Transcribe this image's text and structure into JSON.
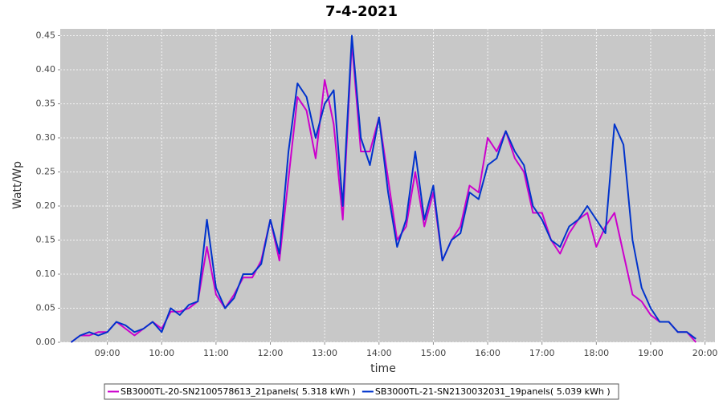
{
  "chart_data": {
    "type": "line",
    "title": "7-4-2021",
    "x_label": "time",
    "y_label": "Watt/Wp",
    "x": [
      "08:20",
      "08:30",
      "08:40",
      "08:50",
      "09:00",
      "09:10",
      "09:20",
      "09:30",
      "09:40",
      "09:50",
      "10:00",
      "10:10",
      "10:20",
      "10:30",
      "10:40",
      "10:50",
      "11:00",
      "11:10",
      "11:20",
      "11:30",
      "11:40",
      "11:50",
      "12:00",
      "12:10",
      "12:20",
      "12:30",
      "12:40",
      "12:50",
      "13:00",
      "13:10",
      "13:20",
      "13:30",
      "13:40",
      "13:50",
      "14:00",
      "14:10",
      "14:20",
      "14:30",
      "14:40",
      "14:50",
      "15:00",
      "15:10",
      "15:20",
      "15:30",
      "15:40",
      "15:50",
      "16:00",
      "16:10",
      "16:20",
      "16:30",
      "16:40",
      "16:50",
      "17:00",
      "17:10",
      "17:20",
      "17:30",
      "17:40",
      "17:50",
      "18:00",
      "18:10",
      "18:20",
      "18:30",
      "18:40",
      "18:50",
      "19:00",
      "19:10",
      "19:20",
      "19:30",
      "19:40",
      "19:50"
    ],
    "series": [
      {
        "name": "SB3000TL-20-SN2100578613_21panels( 5.318 kWh )",
        "color": "#cc00cc",
        "values": [
          0,
          0.01,
          0.01,
          0.015,
          0.015,
          0.03,
          0.02,
          0.01,
          0.02,
          0.03,
          0.02,
          0.045,
          0.045,
          0.05,
          0.06,
          0.14,
          0.07,
          0.05,
          0.07,
          0.095,
          0.095,
          0.12,
          0.18,
          0.12,
          0.24,
          0.36,
          0.34,
          0.27,
          0.385,
          0.32,
          0.18,
          0.44,
          0.28,
          0.28,
          0.33,
          0.24,
          0.15,
          0.17,
          0.25,
          0.17,
          0.22,
          0.12,
          0.15,
          0.17,
          0.23,
          0.22,
          0.3,
          0.28,
          0.31,
          0.27,
          0.25,
          0.19,
          0.19,
          0.15,
          0.13,
          0.16,
          0.18,
          0.19,
          0.14,
          0.17,
          0.19,
          0.13,
          0.07,
          0.06,
          0.04,
          0.03,
          0.03,
          0.015,
          0.015,
          0
        ]
      },
      {
        "name": "SB3000TL-21-SN2130032031_19panels( 5.039 kWh )",
        "color": "#0033cc",
        "values": [
          0,
          0.01,
          0.015,
          0.01,
          0.015,
          0.03,
          0.025,
          0.015,
          0.02,
          0.03,
          0.015,
          0.05,
          0.04,
          0.055,
          0.06,
          0.18,
          0.08,
          0.05,
          0.065,
          0.1,
          0.1,
          0.115,
          0.18,
          0.13,
          0.28,
          0.38,
          0.36,
          0.3,
          0.35,
          0.37,
          0.2,
          0.45,
          0.3,
          0.26,
          0.33,
          0.22,
          0.14,
          0.18,
          0.28,
          0.18,
          0.23,
          0.12,
          0.15,
          0.16,
          0.22,
          0.21,
          0.26,
          0.27,
          0.31,
          0.28,
          0.26,
          0.2,
          0.18,
          0.15,
          0.14,
          0.17,
          0.18,
          0.2,
          0.18,
          0.16,
          0.32,
          0.29,
          0.15,
          0.08,
          0.05,
          0.03,
          0.03,
          0.015,
          0.015,
          0.005
        ]
      }
    ],
    "xlim": [
      "08:08",
      "20:11"
    ],
    "xticks": [
      "09:00",
      "10:00",
      "11:00",
      "12:00",
      "13:00",
      "14:00",
      "15:00",
      "16:00",
      "17:00",
      "18:00",
      "19:00",
      "20:00"
    ],
    "ylim": [
      0,
      0.46
    ],
    "yticks": [
      {
        "value": 0,
        "label": "0.00"
      },
      {
        "value": 0.05,
        "label": "0.05"
      },
      {
        "value": 0.1,
        "label": "0.10"
      },
      {
        "value": 0.15,
        "label": "0.15"
      },
      {
        "value": 0.2,
        "label": "0.20"
      },
      {
        "value": 0.25,
        "label": "0.25"
      },
      {
        "value": 0.3,
        "label": "0.30"
      },
      {
        "value": 0.35,
        "label": "0.35"
      },
      {
        "value": 0.4,
        "label": "0.40"
      },
      {
        "value": 0.45,
        "label": "0.45"
      }
    ],
    "grid": true
  }
}
